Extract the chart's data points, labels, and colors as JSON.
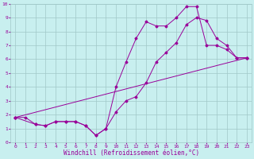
{
  "xlabel": "Windchill (Refroidissement éolien,°C)",
  "xlim": [
    -0.5,
    23.5
  ],
  "ylim": [
    0,
    10
  ],
  "xticks": [
    0,
    1,
    2,
    3,
    4,
    5,
    6,
    7,
    8,
    9,
    10,
    11,
    12,
    13,
    14,
    15,
    16,
    17,
    18,
    19,
    20,
    21,
    22,
    23
  ],
  "yticks": [
    0,
    1,
    2,
    3,
    4,
    5,
    6,
    7,
    8,
    9,
    10
  ],
  "bg_color": "#c8efef",
  "line_color": "#990099",
  "grid_color": "#a0c8c8",
  "line1_x": [
    0,
    1,
    2,
    3,
    4,
    5,
    6,
    7,
    8,
    9,
    10,
    11,
    12,
    13,
    14,
    15,
    16,
    17,
    18,
    19,
    20,
    21,
    22,
    23
  ],
  "line1_y": [
    1.8,
    1.8,
    1.3,
    1.2,
    1.5,
    1.5,
    1.5,
    1.2,
    0.5,
    1.0,
    4.0,
    5.8,
    7.5,
    8.7,
    8.4,
    8.4,
    9.0,
    9.8,
    9.8,
    7.0,
    7.0,
    6.7,
    6.1,
    6.1
  ],
  "line2_x": [
    0,
    2,
    3,
    4,
    5,
    6,
    7,
    8,
    9,
    10,
    11,
    12,
    13,
    14,
    15,
    16,
    17,
    18,
    19,
    20,
    21,
    22,
    23
  ],
  "line2_y": [
    1.8,
    1.3,
    1.2,
    1.5,
    1.5,
    1.5,
    1.2,
    0.5,
    1.0,
    2.2,
    3.0,
    3.3,
    4.3,
    5.8,
    6.5,
    7.2,
    8.5,
    9.0,
    8.8,
    7.5,
    7.0,
    6.1,
    6.1
  ],
  "line3_x": [
    0,
    23
  ],
  "line3_y": [
    1.8,
    6.1
  ],
  "tick_fontsize": 4.5,
  "xlabel_fontsize": 5.5,
  "marker_size": 1.5,
  "line_width": 0.7
}
